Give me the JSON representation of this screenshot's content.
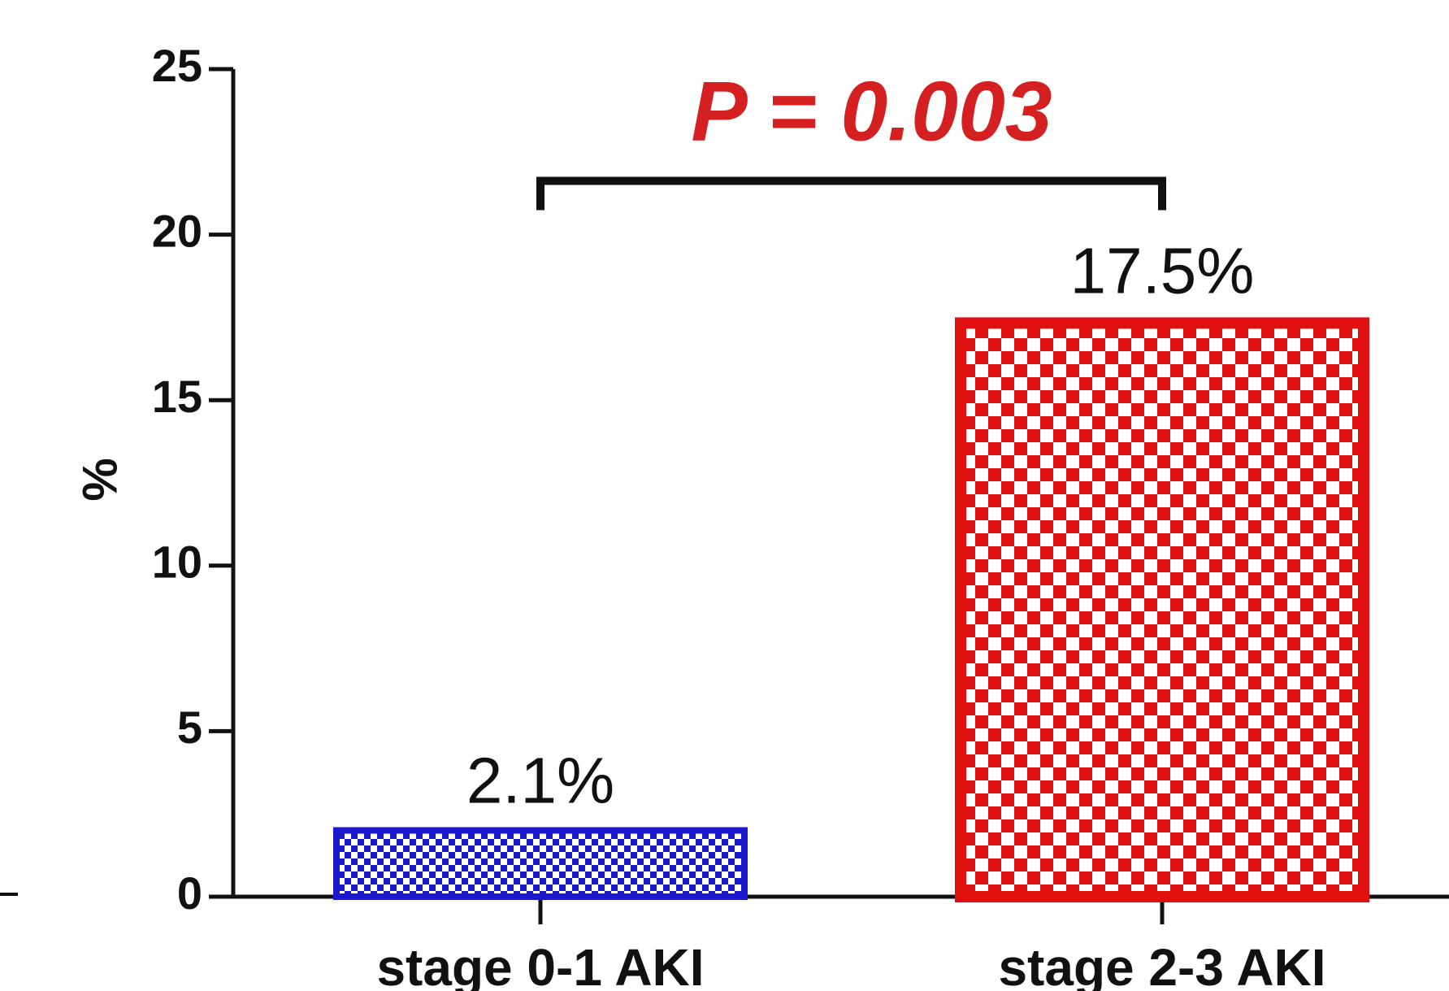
{
  "chart_data": {
    "type": "bar",
    "title": "",
    "xlabel": "",
    "ylabel": "%",
    "ylim": [
      0,
      25
    ],
    "yticks": [
      0,
      5,
      10,
      15,
      20,
      25
    ],
    "categories": [
      "stage 0-1 AKI",
      "stage 2-3 AKI"
    ],
    "values": [
      2.1,
      17.5
    ],
    "data_labels": [
      "2.1%",
      "17.5%"
    ],
    "bar_colors": [
      "#1a1acc",
      "#e01010"
    ],
    "bar_pattern": "checkerboard",
    "grid": false,
    "legend": "none",
    "annotations": [
      {
        "text": "P = 0.003",
        "color": "#d42020",
        "from": "stage 0-1 AKI",
        "to": "stage 2-3 AKI",
        "bracket_y": 21.5
      }
    ]
  }
}
